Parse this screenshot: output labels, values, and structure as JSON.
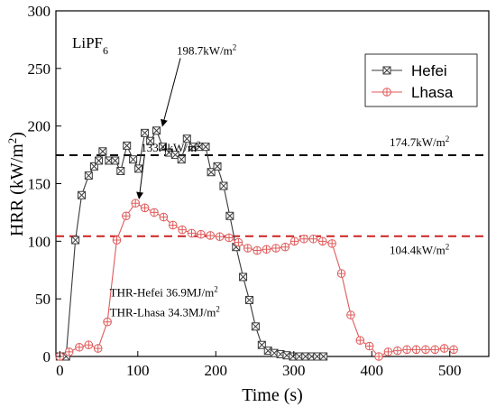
{
  "chart_data": {
    "type": "line",
    "panel_label": {
      "base": "LiPF",
      "sub": "6"
    },
    "xlabel": "Time  (s)",
    "ylabel": {
      "base": "HRR (kW/m",
      "sup": "2",
      "end": ")"
    },
    "xlim": [
      -5,
      550
    ],
    "ylim": [
      0,
      300
    ],
    "xticks": [
      0,
      100,
      200,
      300,
      400,
      500
    ],
    "yticks": [
      0,
      50,
      100,
      150,
      200,
      250,
      300
    ],
    "legend": {
      "position": "top-right",
      "entries": [
        "Hefei",
        "Lhasa"
      ]
    },
    "series": [
      {
        "name": "Hefei",
        "color": "#3a3a3a",
        "marker": "box-x",
        "x": [
          0,
          8,
          20,
          28,
          37,
          44,
          50,
          55,
          63,
          71,
          78,
          86,
          94,
          101,
          109,
          116,
          124,
          132,
          140,
          148,
          156,
          163,
          171,
          179,
          187,
          194,
          202,
          210,
          218,
          226,
          235,
          243,
          251,
          259,
          267,
          275,
          283,
          291,
          299,
          307,
          315,
          323,
          330,
          338
        ],
        "y": [
          0,
          0,
          101,
          140,
          157,
          165,
          170,
          178,
          170,
          170,
          161,
          183,
          171,
          163,
          194,
          187,
          196,
          182,
          177,
          175,
          171,
          189,
          182,
          182,
          182,
          160,
          165,
          148,
          122,
          95,
          69,
          49,
          26,
          10,
          5,
          3,
          2,
          1,
          0,
          0,
          0,
          0,
          0,
          0
        ]
      },
      {
        "name": "Lhasa",
        "color": "#e05a5a",
        "marker": "circle-plus",
        "x": [
          0,
          12,
          25,
          37,
          49,
          61,
          73,
          85,
          97,
          109,
          121,
          133,
          145,
          157,
          169,
          181,
          193,
          205,
          217,
          229,
          241,
          253,
          265,
          277,
          289,
          301,
          313,
          325,
          337,
          349,
          361,
          373,
          385,
          397,
          409,
          421,
          433,
          445,
          457,
          469,
          481,
          493,
          505
        ],
        "y": [
          0,
          4,
          8,
          10,
          7,
          30,
          101,
          122,
          133,
          129,
          125,
          121,
          114,
          110,
          107,
          106,
          105,
          104,
          103,
          99,
          94,
          92,
          93,
          94,
          95,
          100,
          102,
          102,
          100,
          98,
          72,
          36,
          14,
          9,
          0,
          4,
          5,
          6,
          6,
          6,
          6,
          7,
          6
        ]
      }
    ],
    "reference_lines": [
      {
        "y": 174.7,
        "color": "#000000",
        "label": "174.7kW/m",
        "sup": "2"
      },
      {
        "y": 104.4,
        "color": "#cc2222",
        "label": "104.4kW/m",
        "sup": "2"
      }
    ],
    "annotations": [
      {
        "text": "198.7kW/m",
        "sup": "2",
        "at": [
          127,
          197
        ],
        "text_at": [
          150,
          262
        ]
      },
      {
        "text": "133.4kW/m",
        "sup": "2",
        "at": [
          97,
          134
        ],
        "text_at": [
          104,
          178
        ]
      },
      {
        "text": "THR-Hefei 36.9MJ/m",
        "sup": "2",
        "text_at": [
          64,
          52
        ]
      },
      {
        "text": "THR-Lhasa 34.3MJ/m",
        "sup": "2",
        "text_at": [
          64,
          35
        ]
      }
    ]
  }
}
